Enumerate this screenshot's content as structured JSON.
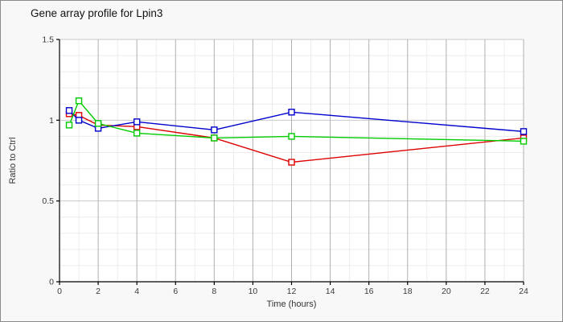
{
  "chart_data": {
    "type": "line",
    "title": "Gene array profile for Lpin3",
    "xlabel": "Time (hours)",
    "ylabel": "Ratio to Ctrl",
    "x": [
      0.5,
      1,
      2,
      4,
      8,
      12,
      24
    ],
    "series": [
      {
        "name": "series-red",
        "color": "#dd0000",
        "marker": "open-square",
        "values": [
          1.04,
          1.03,
          0.97,
          0.96,
          0.89,
          0.74,
          0.89
        ]
      },
      {
        "name": "series-blue",
        "color": "#0000cc",
        "marker": "open-square",
        "values": [
          1.06,
          1.0,
          0.95,
          0.99,
          0.94,
          1.05,
          0.93
        ]
      },
      {
        "name": "series-green",
        "color": "#00cc00",
        "marker": "open-square",
        "values": [
          0.97,
          1.12,
          0.98,
          0.92,
          0.89,
          0.9,
          0.87
        ]
      }
    ],
    "xlim": [
      0,
      24
    ],
    "ylim": [
      0,
      1.5
    ],
    "xticks": [
      0,
      2,
      4,
      6,
      8,
      10,
      12,
      14,
      16,
      18,
      20,
      22,
      24
    ],
    "yticks": [
      0,
      0.5,
      1,
      1.5
    ],
    "x_minor_step": 1,
    "y_minor_step": 0.1,
    "grid": "on",
    "legend": "none",
    "colors": {
      "background": "#f8f8f8",
      "plot_background": "#ffffff",
      "major_vgrid": "#b0b0b0",
      "major_hgrid": "#c9c9c9",
      "minor_grid": "#ececec",
      "axis": "#000000",
      "tick_label": "#3a3a3a",
      "axis_title": "#333333",
      "frame_border": "#8a8a8a"
    }
  }
}
